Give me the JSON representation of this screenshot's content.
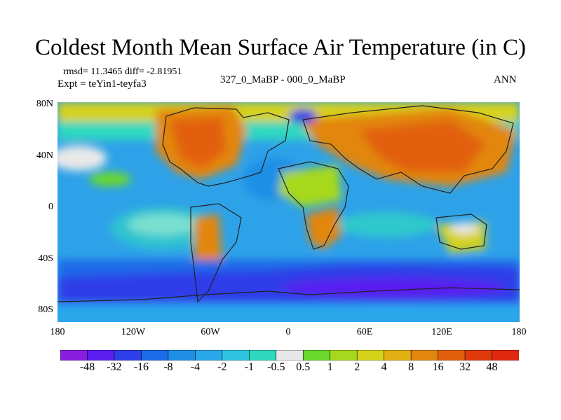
{
  "title": "Coldest Month Mean Surface Air Temperature (in C)",
  "stats": {
    "rmsd_diff": "rmsd= 11.3465 diff= -2.81951",
    "expt": "Expt = teYin1-teyfa3",
    "period": "327_0_MaBP - 000_0_MaBP",
    "season": "ANN"
  },
  "map": {
    "lat_labels": [
      "80N",
      "40N",
      "0",
      "40S",
      "80S"
    ],
    "lon_labels": [
      "180",
      "120W",
      "60W",
      "0",
      "60E",
      "120E",
      "180"
    ]
  },
  "colorbar": {
    "labels": [
      "-48",
      "-32",
      "-16",
      "-8",
      "-4",
      "-2",
      "-1",
      "-0.5",
      "0.5",
      "1",
      "2",
      "4",
      "8",
      "16",
      "32",
      "48"
    ],
    "colors": [
      "#8a1ee0",
      "#5a1ef0",
      "#2e3ee8",
      "#1c6be8",
      "#1f8fe6",
      "#29a9ec",
      "#2ec4e0",
      "#2fd8c0",
      "#e8e8e8",
      "#6ad82a",
      "#a6d81e",
      "#d6d21a",
      "#e2b012",
      "#e2860e",
      "#e2600c",
      "#e03a0a",
      "#e02810"
    ]
  }
}
